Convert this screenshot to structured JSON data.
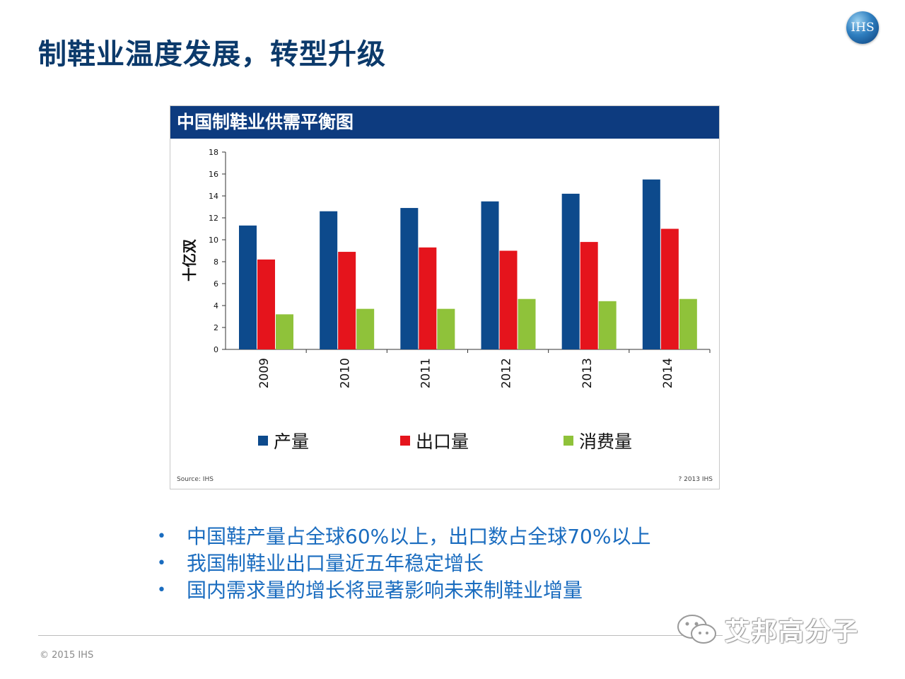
{
  "slide": {
    "title": "制鞋业温度发展，转型升级",
    "logo_text": "IHS",
    "bullets": [
      "中国鞋产量占全球60%以上，出口数占全球70%以上",
      "我国制鞋业出口量近五年稳定增长",
      "国内需求量的增长将显著影响未来制鞋业增量"
    ],
    "footer": "© 2015 IHS",
    "watermark": "艾邦高分子"
  },
  "chart_data": {
    "type": "bar",
    "title": "中国制鞋业供需平衡图",
    "ylabel": "十亿双",
    "xlabel": "",
    "ylim": [
      0,
      18
    ],
    "yticks": [
      0,
      2,
      4,
      6,
      8,
      10,
      12,
      14,
      16,
      18
    ],
    "categories": [
      "2009",
      "2010",
      "2011",
      "2012",
      "2013",
      "2014"
    ],
    "series": [
      {
        "name": "产量",
        "color": "#0d4a8c",
        "values": [
          11.3,
          12.6,
          12.9,
          13.5,
          14.2,
          15.5
        ]
      },
      {
        "name": "出口量",
        "color": "#e5141c",
        "values": [
          8.2,
          8.9,
          9.3,
          9.0,
          9.8,
          11.0
        ]
      },
      {
        "name": "消费量",
        "color": "#8fc23a",
        "values": [
          3.2,
          3.7,
          3.7,
          4.6,
          4.4,
          4.6
        ]
      }
    ],
    "source": "Source: IHS",
    "copyright": "? 2013 IHS",
    "legend_position": "bottom",
    "grid": false
  }
}
